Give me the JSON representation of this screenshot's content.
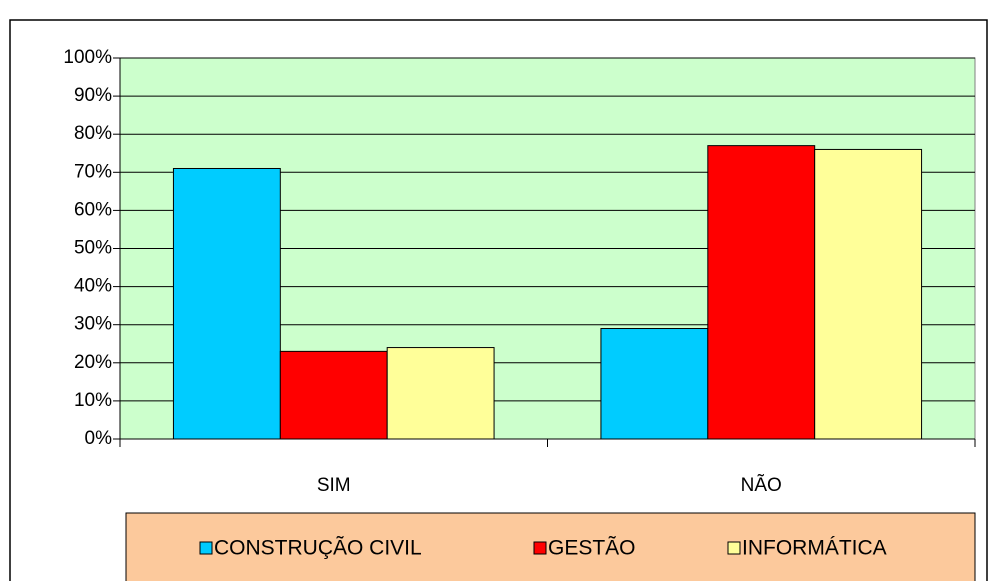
{
  "chart_data": {
    "type": "bar",
    "categories": [
      "SIM",
      "NÃO"
    ],
    "series": [
      {
        "name": "CONSTRUÇÃO CIVIL",
        "color": "#00ccff",
        "values": [
          71,
          29
        ]
      },
      {
        "name": "GESTÃO",
        "color": "#ff0000",
        "values": [
          23,
          77
        ]
      },
      {
        "name": "INFORMÁTICA",
        "color": "#ffff99",
        "values": [
          24,
          76
        ]
      }
    ],
    "ylim": [
      0,
      100
    ],
    "yticks": [
      {
        "value": 0,
        "label": "0%"
      },
      {
        "value": 10,
        "label": "10%"
      },
      {
        "value": 20,
        "label": "20%"
      },
      {
        "value": 30,
        "label": "30%"
      },
      {
        "value": 40,
        "label": "40%"
      },
      {
        "value": 50,
        "label": "50%"
      },
      {
        "value": 60,
        "label": "60%"
      },
      {
        "value": 70,
        "label": "70%"
      },
      {
        "value": 80,
        "label": "80%"
      },
      {
        "value": 90,
        "label": "90%"
      },
      {
        "value": 100,
        "label": "100%"
      }
    ],
    "grid": true,
    "legend": "bottom"
  }
}
